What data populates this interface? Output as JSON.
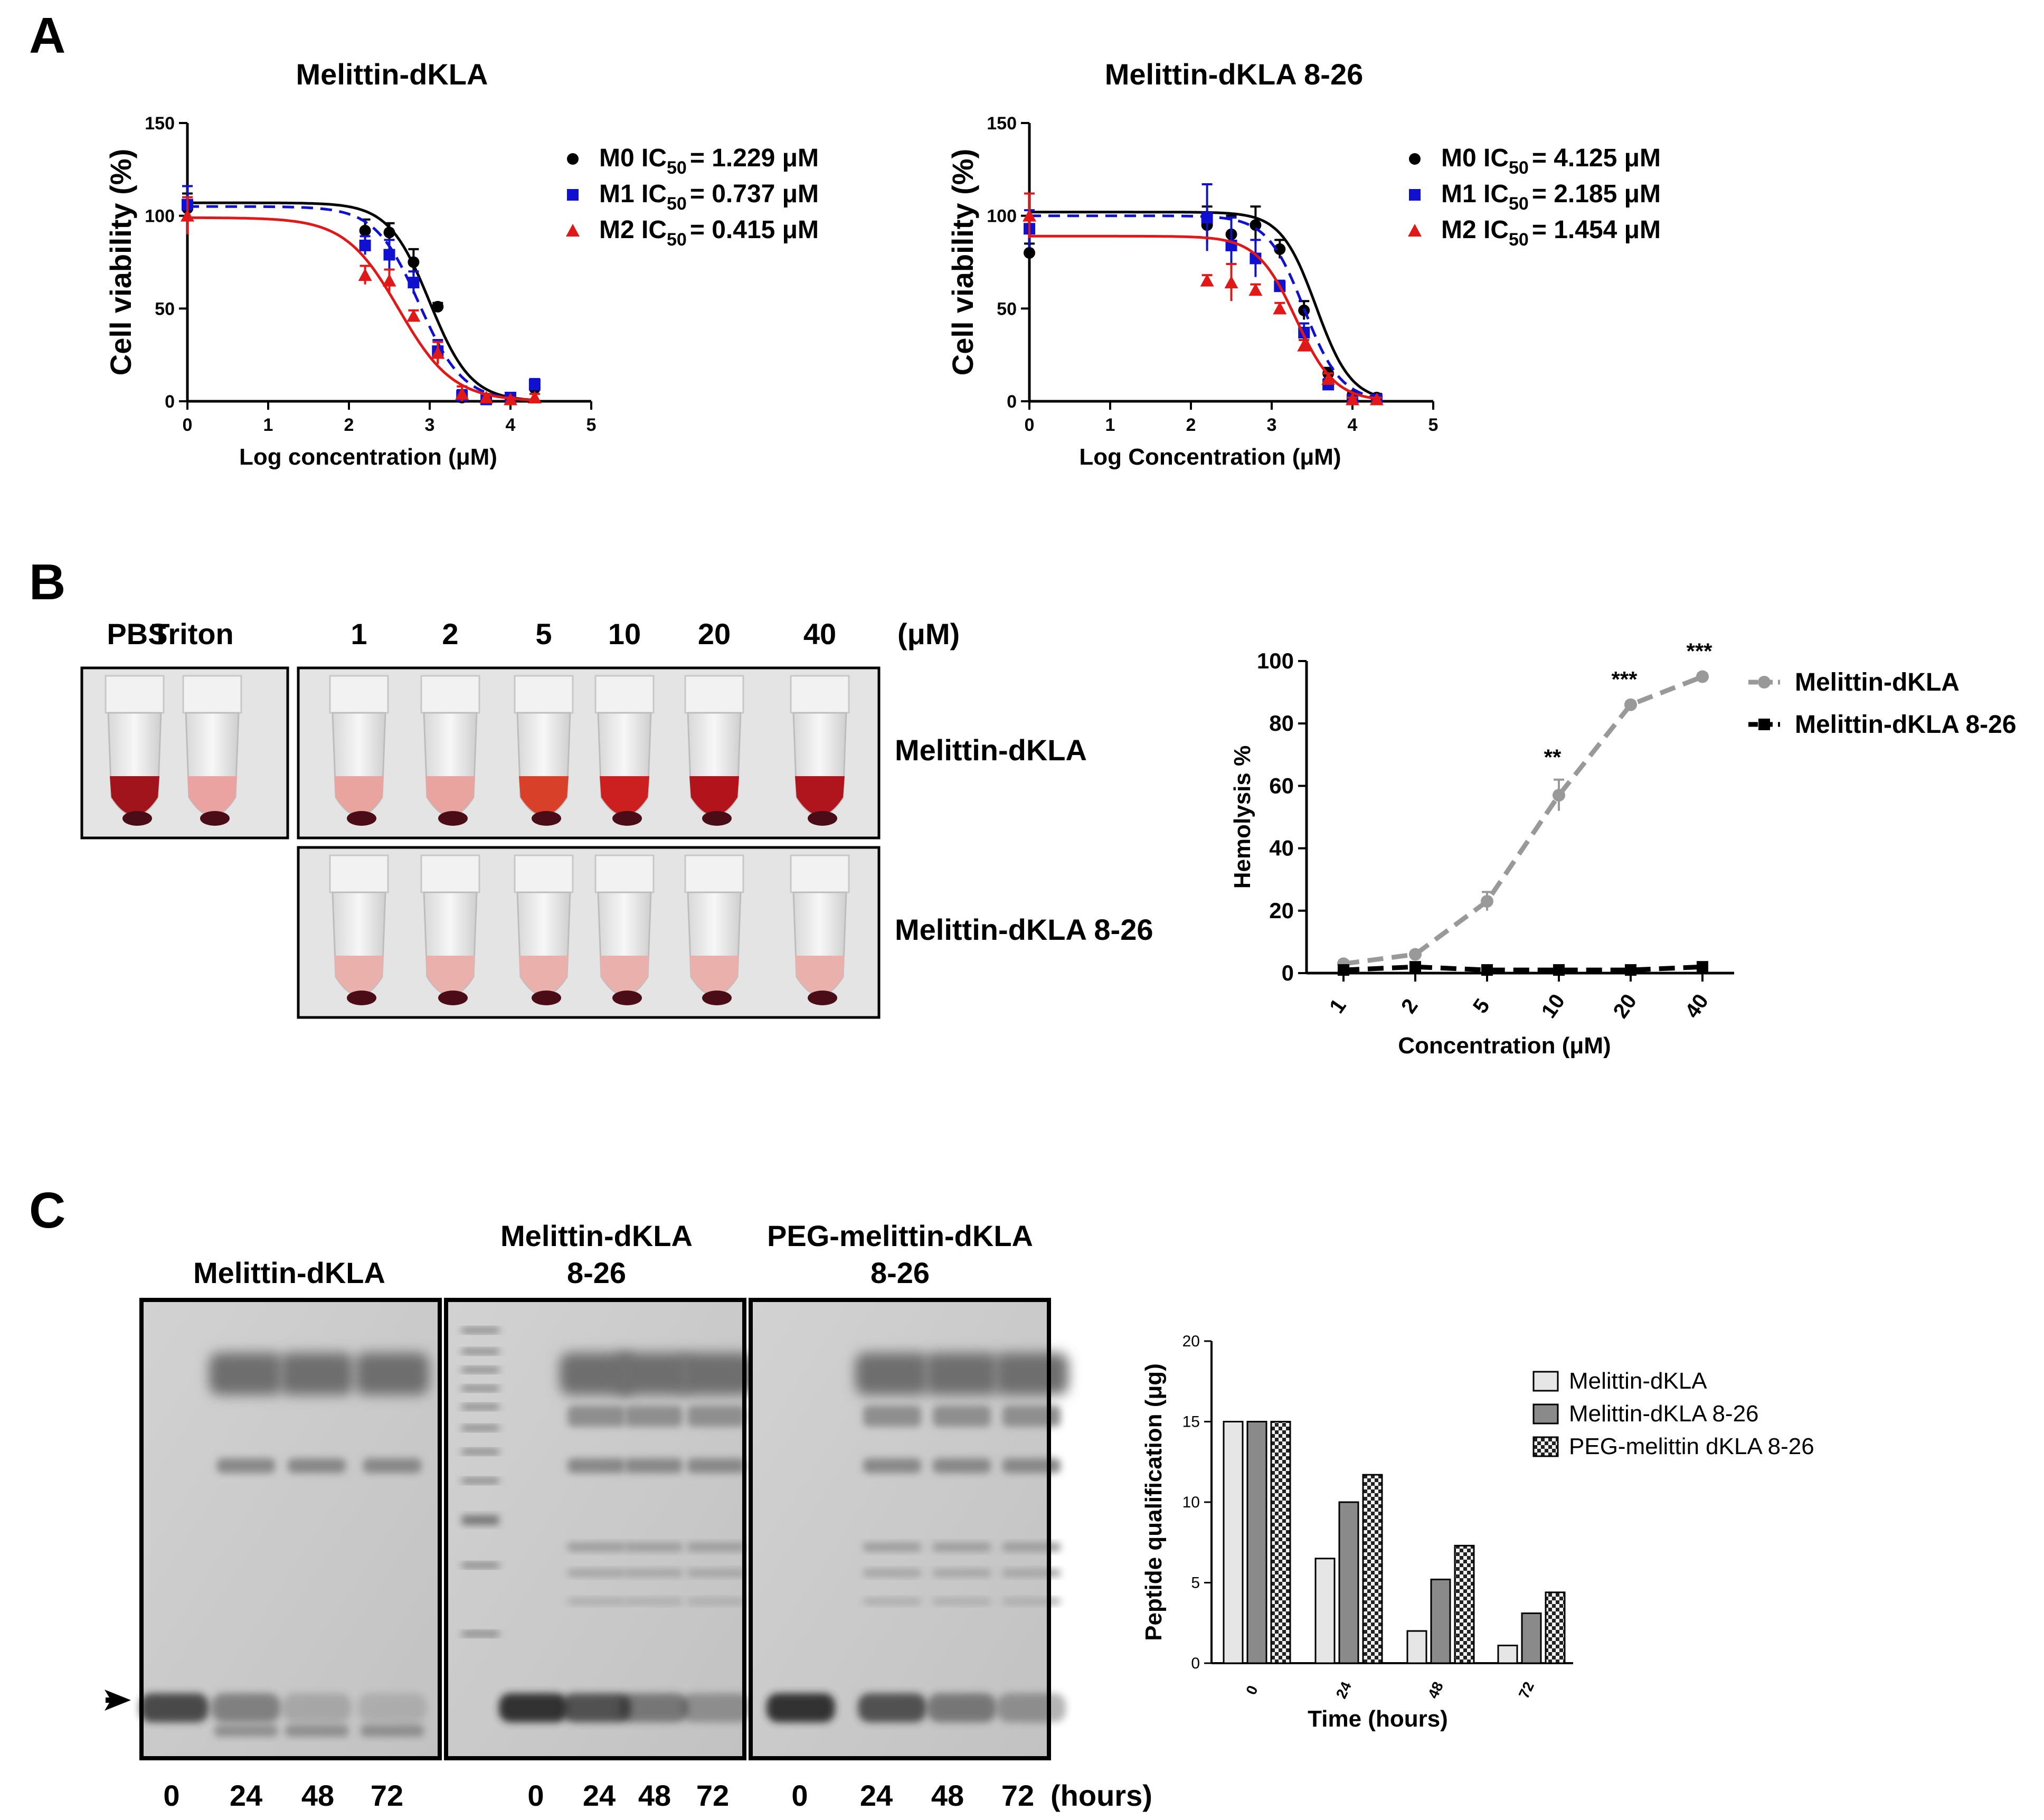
{
  "panels": {
    "A": {
      "letter": "A",
      "charts": [
        {
          "type": "scatter-fit",
          "title": "Melittin-dKLA",
          "xlabel": "Log concentration (μM)",
          "ylabel": "Cell viability (%)",
          "xlim": [
            0,
            5
          ],
          "ylim": [
            0,
            150
          ],
          "xticks": [
            "0",
            "1",
            "2",
            "3",
            "4",
            "5"
          ],
          "yticks": [
            "0",
            "50",
            "100",
            "150"
          ],
          "series": [
            {
              "name": "M0",
              "ic50_label": "M0 IC",
              "ic50_value": "= 1.229 μM",
              "color": "#000000",
              "marker": "circle",
              "line": "solid",
              "top": 107,
              "bottom": 0,
              "logIC50": 3.0,
              "hill": 1.7,
              "points": [
                [
                  0,
                  104,
                  8
                ],
                [
                  2.2,
                  92,
                  6
                ],
                [
                  2.5,
                  91,
                  5
                ],
                [
                  2.8,
                  75,
                  7
                ],
                [
                  3.1,
                  51,
                  2
                ],
                [
                  3.4,
                  2,
                  1
                ],
                [
                  3.7,
                  1,
                  1
                ],
                [
                  4.0,
                  1,
                  1
                ],
                [
                  4.3,
                  7,
                  3
                ]
              ]
            },
            {
              "name": "M1",
              "ic50_label": "M1 IC",
              "ic50_value": "= 0.737 μM",
              "color": "#1010d0",
              "marker": "square",
              "line": "dashed",
              "top": 105,
              "bottom": 0,
              "logIC50": 2.87,
              "hill": 1.6,
              "points": [
                [
                  0,
                  106,
                  10
                ],
                [
                  2.2,
                  84,
                  5
                ],
                [
                  2.5,
                  79,
                  8
                ],
                [
                  2.8,
                  64,
                  6
                ],
                [
                  3.1,
                  27,
                  6
                ],
                [
                  3.4,
                  3,
                  3
                ],
                [
                  3.7,
                  1,
                  1
                ],
                [
                  4.0,
                  2,
                  2
                ],
                [
                  4.3,
                  9,
                  3
                ]
              ]
            },
            {
              "name": "M2",
              "ic50_label": "M2 IC",
              "ic50_value": "= 0.415 μM",
              "color": "#e01818",
              "marker": "triangle",
              "line": "solid",
              "top": 99,
              "bottom": 0,
              "logIC50": 2.62,
              "hill": 1.3,
              "points": [
                [
                  0,
                  100,
                  10
                ],
                [
                  2.2,
                  68,
                  5
                ],
                [
                  2.5,
                  65,
                  6
                ],
                [
                  2.8,
                  46,
                  3
                ],
                [
                  3.1,
                  26,
                  6
                ],
                [
                  3.4,
                  4,
                  4
                ],
                [
                  3.7,
                  2,
                  2
                ],
                [
                  4.0,
                  1,
                  1
                ],
                [
                  4.3,
                  2,
                  2
                ]
              ]
            }
          ]
        },
        {
          "type": "scatter-fit",
          "title": "Melittin-dKLA 8-26",
          "xlabel": "Log Concentration (μM)",
          "ylabel": "Cell viability (%)",
          "xlim": [
            0,
            5
          ],
          "ylim": [
            0,
            150
          ],
          "xticks": [
            "0",
            "1",
            "2",
            "3",
            "4",
            "5"
          ],
          "yticks": [
            "0",
            "50",
            "100",
            "150"
          ],
          "series": [
            {
              "name": "M0",
              "ic50_label": "M0 IC",
              "ic50_value": "= 4.125 μM",
              "color": "#000000",
              "marker": "circle",
              "line": "solid",
              "top": 102,
              "bottom": 0,
              "logIC50": 3.55,
              "hill": 2.0,
              "points": [
                [
                  0,
                  80,
                  5
                ],
                [
                  2.2,
                  95,
                  10
                ],
                [
                  2.5,
                  90,
                  10
                ],
                [
                  2.8,
                  95,
                  10
                ],
                [
                  3.1,
                  82,
                  5
                ],
                [
                  3.4,
                  49,
                  5
                ],
                [
                  3.7,
                  15,
                  3
                ],
                [
                  4.0,
                  3,
                  2
                ],
                [
                  4.3,
                  2,
                  2
                ]
              ]
            },
            {
              "name": "M1",
              "ic50_label": "M1 IC",
              "ic50_value": "= 2.185 μM",
              "color": "#1010d0",
              "marker": "square",
              "line": "dashed",
              "top": 100,
              "bottom": 0,
              "logIC50": 3.4,
              "hill": 1.9,
              "points": [
                [
                  0,
                  93,
                  10
                ],
                [
                  2.2,
                  99,
                  18
                ],
                [
                  2.5,
                  84,
                  15
                ],
                [
                  2.8,
                  77,
                  10
                ],
                [
                  3.1,
                  62,
                  3
                ],
                [
                  3.4,
                  37,
                  5
                ],
                [
                  3.7,
                  9,
                  3
                ],
                [
                  4.0,
                  1,
                  1
                ],
                [
                  4.3,
                  1,
                  1
                ]
              ]
            },
            {
              "name": "M2",
              "ic50_label": "M2 IC",
              "ic50_value": "= 1.454 μM",
              "color": "#e01818",
              "marker": "triangle",
              "line": "solid",
              "top": 89,
              "bottom": 0,
              "logIC50": 3.3,
              "hill": 1.8,
              "points": [
                [
                  0,
                  100,
                  12
                ],
                [
                  2.2,
                  65,
                  3
                ],
                [
                  2.5,
                  64,
                  10
                ],
                [
                  2.8,
                  60,
                  3
                ],
                [
                  3.1,
                  50,
                  3
                ],
                [
                  3.4,
                  30,
                  3
                ],
                [
                  3.7,
                  12,
                  3
                ],
                [
                  4.0,
                  1,
                  1
                ],
                [
                  4.3,
                  1,
                  1
                ]
              ]
            }
          ]
        }
      ],
      "ic50_subscript": "50"
    },
    "B": {
      "letter": "B",
      "photo_header": [
        "PBS",
        "Triton",
        "1",
        "2",
        "5",
        "10",
        "20",
        "40",
        "(μM)"
      ],
      "row_labels": [
        "Melittin-dKLA",
        "Melittin-dKLA 8-26"
      ],
      "tube_colors": {
        "controls": [
          "#a1141c",
          "#eaa3a0"
        ],
        "row1": [
          "#e9a49f",
          "#e9a49f",
          "#d8402a",
          "#cc2020",
          "#b3141c",
          "#b0141c"
        ],
        "row2": [
          "#eab0ab",
          "#eab0ab",
          "#eab0ab",
          "#eab0ab",
          "#eab0ab",
          "#eab0ab"
        ]
      },
      "chart": {
        "type": "line",
        "xlabel": "Concentration (μM)",
        "ylabel": "Hemolysis %",
        "categories": [
          "1",
          "2",
          "5",
          "10",
          "20",
          "40"
        ],
        "ylim": [
          0,
          100
        ],
        "yticks": [
          "0",
          "20",
          "40",
          "60",
          "80",
          "100"
        ],
        "series": [
          {
            "name": "Melittin-dKLA",
            "color": "#999999",
            "values": [
              3,
              6,
              23,
              57,
              86,
              95
            ],
            "errors": [
              1,
              1,
              3,
              5,
              1,
              1
            ]
          },
          {
            "name": "Melittin-dKLA 8-26",
            "color": "#000000",
            "values": [
              1,
              2,
              1,
              1,
              1,
              2
            ],
            "errors": [
              0.5,
              0.5,
              0.5,
              0.5,
              0.5,
              0.5
            ]
          }
        ],
        "annotations": [
          {
            "category": "10",
            "text": "**"
          },
          {
            "category": "20",
            "text": "***"
          },
          {
            "category": "40",
            "text": "***"
          }
        ]
      }
    },
    "C": {
      "letter": "C",
      "gel_titles": [
        {
          "line1": "Melittin-dKLA",
          "line2": ""
        },
        {
          "line1": "Melittin-dKLA",
          "line2": "8-26"
        },
        {
          "line1": "PEG-melittin-dKLA",
          "line2": "8-26"
        }
      ],
      "gel_lanes": [
        [
          "0",
          "24",
          "48",
          "72"
        ],
        [
          "0",
          "24",
          "48",
          "72"
        ],
        [
          "0",
          "24",
          "48",
          "72"
        ]
      ],
      "hours_label": "(hours)",
      "chart": {
        "type": "bar",
        "xlabel": "Time (hours)",
        "ylabel": "Peptide qualification (μg)",
        "categories": [
          "0",
          "24",
          "48",
          "72"
        ],
        "ylim": [
          0,
          20
        ],
        "yticks": [
          "0",
          "5",
          "10",
          "15",
          "20"
        ],
        "series": [
          {
            "name": "Melittin-dKLA",
            "fill": "#e6e6e6",
            "values": [
              15,
              6.5,
              2,
              1.1
            ]
          },
          {
            "name": "Melittin-dKLA 8-26",
            "fill": "#8a8a8a",
            "values": [
              15,
              10,
              5.2,
              3.1
            ]
          },
          {
            "name": "PEG-melittin dKLA 8-26",
            "fill": "checker",
            "values": [
              15,
              11.7,
              7.3,
              4.4
            ]
          }
        ]
      }
    }
  }
}
